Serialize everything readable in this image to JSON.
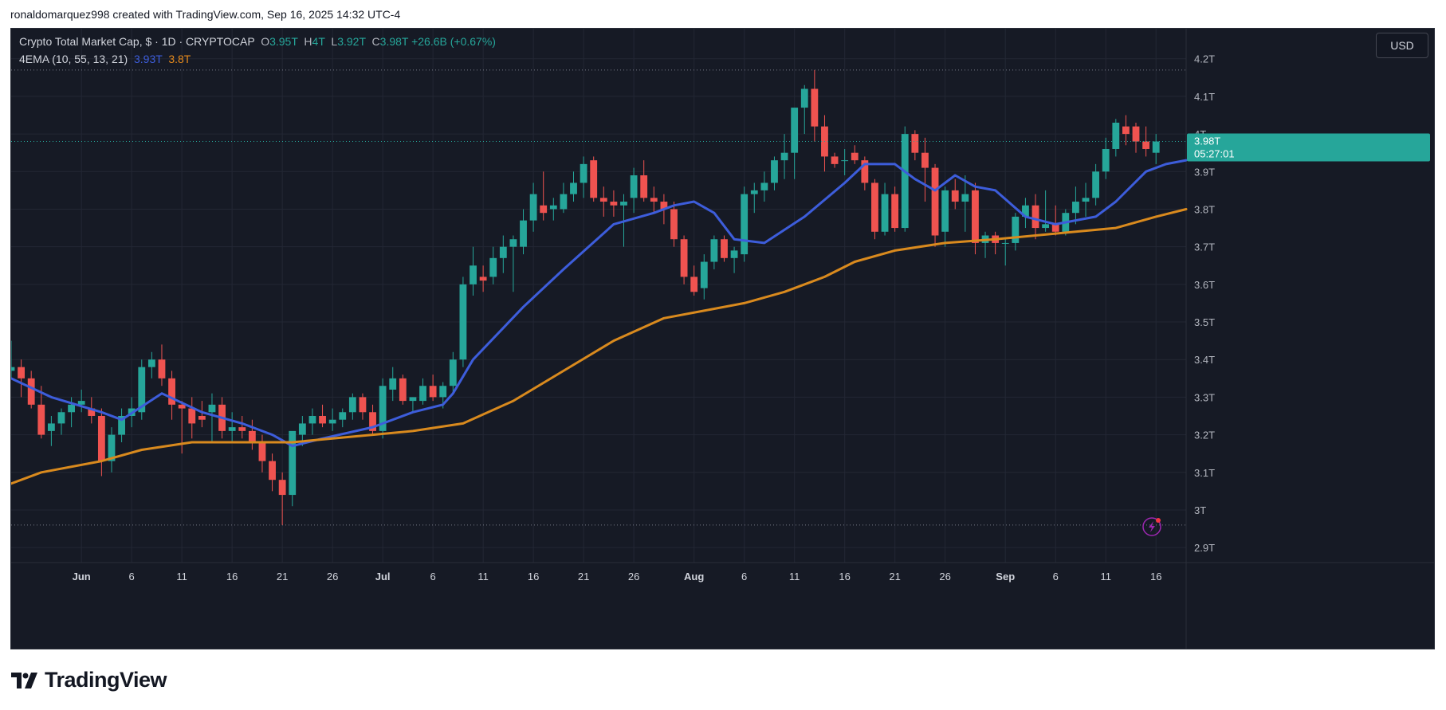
{
  "caption": "ronaldomarquez998 created with TradingView.com, Sep 16, 2025 14:32 UTC-4",
  "legend": {
    "title": "Crypto Total Market Cap, $ · 1D · CRYPTOCAP",
    "o_label": "O",
    "o_value": "3.95T",
    "h_label": "H",
    "h_value": "4T",
    "l_label": "L",
    "l_value": "3.92T",
    "c_label": "C",
    "c_value": "3.98T",
    "change": "+26.6B (+0.67%)",
    "indicator_name": "4EMA (10, 55, 13, 21)",
    "ema_fast_value": "3.93T",
    "ema_slow_value": "3.8T"
  },
  "currency_button": "USD",
  "price_label": {
    "price": "3.98T",
    "countdown": "05:27:01"
  },
  "brand": "TradingView",
  "colors": {
    "up": "#26a69a",
    "down": "#ef5350",
    "ema_fast": "#3d5ddb",
    "ema_slow": "#d98a1e",
    "background": "#161a25",
    "grid": "#232734"
  },
  "icons": {
    "logo": "tradingview-logo-icon",
    "alert": "lightning-alert-icon"
  },
  "chart_data": {
    "type": "candlestick",
    "y_ticks": [
      "2.9T",
      "3T",
      "3.1T",
      "3.2T",
      "3.3T",
      "3.4T",
      "3.5T",
      "3.6T",
      "3.7T",
      "3.8T",
      "3.9T",
      "4T",
      "4.1T",
      "4.2T"
    ],
    "y_tick_values": [
      2.9,
      3.0,
      3.1,
      3.2,
      3.3,
      3.4,
      3.5,
      3.6,
      3.7,
      3.8,
      3.9,
      4.0,
      4.1,
      4.2
    ],
    "ylim": [
      2.86,
      4.28
    ],
    "x_ticks": [
      {
        "label": "Jun",
        "date": "2025-06-01",
        "bold": true
      },
      {
        "label": "6",
        "date": "2025-06-06"
      },
      {
        "label": "11",
        "date": "2025-06-11"
      },
      {
        "label": "16",
        "date": "2025-06-16"
      },
      {
        "label": "21",
        "date": "2025-06-21"
      },
      {
        "label": "26",
        "date": "2025-06-26"
      },
      {
        "label": "Jul",
        "date": "2025-07-01",
        "bold": true
      },
      {
        "label": "6",
        "date": "2025-07-06"
      },
      {
        "label": "11",
        "date": "2025-07-11"
      },
      {
        "label": "16",
        "date": "2025-07-16"
      },
      {
        "label": "21",
        "date": "2025-07-21"
      },
      {
        "label": "26",
        "date": "2025-07-26"
      },
      {
        "label": "Aug",
        "date": "2025-08-01",
        "bold": true
      },
      {
        "label": "6",
        "date": "2025-08-06"
      },
      {
        "label": "11",
        "date": "2025-08-11"
      },
      {
        "label": "16",
        "date": "2025-08-16"
      },
      {
        "label": "21",
        "date": "2025-08-21"
      },
      {
        "label": "26",
        "date": "2025-08-26"
      },
      {
        "label": "Sep",
        "date": "2025-09-01",
        "bold": true
      },
      {
        "label": "6",
        "date": "2025-09-06"
      },
      {
        "label": "11",
        "date": "2025-09-11"
      },
      {
        "label": "16",
        "date": "2025-09-16"
      }
    ],
    "first_date": "2025-05-25",
    "last_date": "2025-09-16",
    "visible_range": [
      "2025-05-25",
      "2025-09-19"
    ],
    "ohlc": [
      [
        3.37,
        3.45,
        3.35,
        3.38
      ],
      [
        3.38,
        3.4,
        3.3,
        3.35
      ],
      [
        3.35,
        3.37,
        3.27,
        3.28
      ],
      [
        3.28,
        3.33,
        3.19,
        3.2
      ],
      [
        3.21,
        3.25,
        3.17,
        3.23
      ],
      [
        3.23,
        3.27,
        3.2,
        3.26
      ],
      [
        3.26,
        3.3,
        3.22,
        3.28
      ],
      [
        3.28,
        3.32,
        3.26,
        3.29
      ],
      [
        3.27,
        3.3,
        3.23,
        3.25
      ],
      [
        3.25,
        3.27,
        3.09,
        3.13
      ],
      [
        3.13,
        3.22,
        3.1,
        3.2
      ],
      [
        3.2,
        3.27,
        3.18,
        3.25
      ],
      [
        3.25,
        3.3,
        3.22,
        3.27
      ],
      [
        3.26,
        3.4,
        3.24,
        3.38
      ],
      [
        3.38,
        3.42,
        3.35,
        3.4
      ],
      [
        3.4,
        3.44,
        3.33,
        3.35
      ],
      [
        3.35,
        3.37,
        3.24,
        3.28
      ],
      [
        3.28,
        3.29,
        3.15,
        3.27
      ],
      [
        3.27,
        3.3,
        3.19,
        3.23
      ],
      [
        3.25,
        3.29,
        3.22,
        3.24
      ],
      [
        3.26,
        3.31,
        3.18,
        3.28
      ],
      [
        3.28,
        3.3,
        3.19,
        3.21
      ],
      [
        3.21,
        3.26,
        3.18,
        3.22
      ],
      [
        3.22,
        3.25,
        3.19,
        3.21
      ],
      [
        3.21,
        3.24,
        3.16,
        3.18
      ],
      [
        3.18,
        3.2,
        3.1,
        3.13
      ],
      [
        3.13,
        3.15,
        3.05,
        3.08
      ],
      [
        3.08,
        3.1,
        2.96,
        3.04
      ],
      [
        3.04,
        3.2,
        3.01,
        3.21
      ],
      [
        3.2,
        3.25,
        3.17,
        3.23
      ],
      [
        3.23,
        3.27,
        3.2,
        3.25
      ],
      [
        3.25,
        3.28,
        3.22,
        3.23
      ],
      [
        3.23,
        3.27,
        3.21,
        3.24
      ],
      [
        3.24,
        3.27,
        3.22,
        3.26
      ],
      [
        3.26,
        3.31,
        3.24,
        3.3
      ],
      [
        3.3,
        3.31,
        3.24,
        3.26
      ],
      [
        3.26,
        3.28,
        3.2,
        3.21
      ],
      [
        3.21,
        3.35,
        3.19,
        3.33
      ],
      [
        3.32,
        3.38,
        3.29,
        3.35
      ],
      [
        3.35,
        3.36,
        3.28,
        3.29
      ],
      [
        3.29,
        3.3,
        3.26,
        3.3
      ],
      [
        3.29,
        3.35,
        3.28,
        3.33
      ],
      [
        3.33,
        3.36,
        3.29,
        3.3
      ],
      [
        3.3,
        3.34,
        3.27,
        3.33
      ],
      [
        3.33,
        3.42,
        3.31,
        3.4
      ],
      [
        3.4,
        3.62,
        3.38,
        3.6
      ],
      [
        3.6,
        3.7,
        3.57,
        3.65
      ],
      [
        3.62,
        3.65,
        3.58,
        3.61
      ],
      [
        3.62,
        3.7,
        3.6,
        3.67
      ],
      [
        3.67,
        3.73,
        3.63,
        3.7
      ],
      [
        3.7,
        3.73,
        3.58,
        3.72
      ],
      [
        3.7,
        3.8,
        3.68,
        3.77
      ],
      [
        3.77,
        3.87,
        3.74,
        3.84
      ],
      [
        3.81,
        3.9,
        3.77,
        3.79
      ],
      [
        3.8,
        3.83,
        3.77,
        3.81
      ],
      [
        3.8,
        3.87,
        3.79,
        3.84
      ],
      [
        3.84,
        3.9,
        3.82,
        3.87
      ],
      [
        3.87,
        3.94,
        3.83,
        3.92
      ],
      [
        3.93,
        3.94,
        3.82,
        3.83
      ],
      [
        3.83,
        3.86,
        3.78,
        3.82
      ],
      [
        3.82,
        3.85,
        3.78,
        3.81
      ],
      [
        3.81,
        3.84,
        3.7,
        3.82
      ],
      [
        3.83,
        3.91,
        3.79,
        3.89
      ],
      [
        3.89,
        3.93,
        3.82,
        3.83
      ],
      [
        3.83,
        3.86,
        3.79,
        3.82
      ],
      [
        3.82,
        3.84,
        3.76,
        3.8
      ],
      [
        3.8,
        3.82,
        3.7,
        3.72
      ],
      [
        3.72,
        3.73,
        3.6,
        3.62
      ],
      [
        3.62,
        3.65,
        3.57,
        3.58
      ],
      [
        3.59,
        3.68,
        3.56,
        3.66
      ],
      [
        3.66,
        3.73,
        3.64,
        3.72
      ],
      [
        3.72,
        3.73,
        3.66,
        3.67
      ],
      [
        3.67,
        3.7,
        3.63,
        3.69
      ],
      [
        3.68,
        3.86,
        3.66,
        3.84
      ],
      [
        3.84,
        3.87,
        3.79,
        3.85
      ],
      [
        3.85,
        3.9,
        3.82,
        3.87
      ],
      [
        3.87,
        3.94,
        3.85,
        3.93
      ],
      [
        3.93,
        4.0,
        3.88,
        3.95
      ],
      [
        3.95,
        4.06,
        3.88,
        4.07
      ],
      [
        4.07,
        4.13,
        4.0,
        4.12
      ],
      [
        4.12,
        4.17,
        3.98,
        4.02
      ],
      [
        4.02,
        4.05,
        3.9,
        3.94
      ],
      [
        3.94,
        3.95,
        3.91,
        3.92
      ],
      [
        3.93,
        3.96,
        3.89,
        3.93
      ],
      [
        3.95,
        3.97,
        3.92,
        3.93
      ],
      [
        3.93,
        3.94,
        3.85,
        3.87
      ],
      [
        3.87,
        3.88,
        3.72,
        3.74
      ],
      [
        3.74,
        3.87,
        3.73,
        3.84
      ],
      [
        3.84,
        3.86,
        3.74,
        3.75
      ],
      [
        3.75,
        4.02,
        3.74,
        4.0
      ],
      [
        4.0,
        4.01,
        3.93,
        3.95
      ],
      [
        3.95,
        3.99,
        3.82,
        3.91
      ],
      [
        3.91,
        3.92,
        3.7,
        3.73
      ],
      [
        3.74,
        3.86,
        3.7,
        3.85
      ],
      [
        3.85,
        3.88,
        3.8,
        3.82
      ],
      [
        3.82,
        3.89,
        3.74,
        3.84
      ],
      [
        3.85,
        3.87,
        3.68,
        3.71
      ],
      [
        3.71,
        3.74,
        3.67,
        3.73
      ],
      [
        3.73,
        3.74,
        3.68,
        3.71
      ],
      [
        3.71,
        3.72,
        3.65,
        3.71
      ],
      [
        3.71,
        3.79,
        3.69,
        3.78
      ],
      [
        3.78,
        3.83,
        3.75,
        3.81
      ],
      [
        3.81,
        3.84,
        3.72,
        3.75
      ],
      [
        3.75,
        3.85,
        3.74,
        3.76
      ],
      [
        3.76,
        3.81,
        3.73,
        3.74
      ],
      [
        3.74,
        3.8,
        3.73,
        3.79
      ],
      [
        3.79,
        3.86,
        3.76,
        3.82
      ],
      [
        3.82,
        3.87,
        3.78,
        3.83
      ],
      [
        3.83,
        3.92,
        3.81,
        3.9
      ],
      [
        3.9,
        3.99,
        3.88,
        3.96
      ],
      [
        3.96,
        4.04,
        3.94,
        4.03
      ],
      [
        4.02,
        4.05,
        3.97,
        4.0
      ],
      [
        4.02,
        4.03,
        3.95,
        3.98
      ],
      [
        3.98,
        4.02,
        3.94,
        3.96
      ],
      [
        3.95,
        4.0,
        3.92,
        3.98
      ]
    ],
    "series": [
      {
        "name": "EMA 10",
        "points": [
          [
            0,
            3.35
          ],
          [
            4,
            3.3
          ],
          [
            9,
            3.26
          ],
          [
            11,
            3.24
          ],
          [
            15,
            3.31
          ],
          [
            19,
            3.26
          ],
          [
            23,
            3.23
          ],
          [
            26,
            3.2
          ],
          [
            28,
            3.17
          ],
          [
            31,
            3.19
          ],
          [
            36,
            3.22
          ],
          [
            40,
            3.26
          ],
          [
            43,
            3.28
          ],
          [
            44,
            3.31
          ],
          [
            46,
            3.4
          ],
          [
            51,
            3.54
          ],
          [
            55,
            3.64
          ],
          [
            60,
            3.76
          ],
          [
            64,
            3.79
          ],
          [
            66,
            3.81
          ],
          [
            68,
            3.82
          ],
          [
            70,
            3.79
          ],
          [
            72,
            3.72
          ],
          [
            75,
            3.71
          ],
          [
            79,
            3.78
          ],
          [
            83,
            3.87
          ],
          [
            85,
            3.92
          ],
          [
            88,
            3.92
          ],
          [
            90,
            3.88
          ],
          [
            92,
            3.85
          ],
          [
            94,
            3.89
          ],
          [
            96,
            3.86
          ],
          [
            98,
            3.85
          ],
          [
            101,
            3.78
          ],
          [
            104,
            3.76
          ],
          [
            106,
            3.77
          ],
          [
            108,
            3.78
          ],
          [
            110,
            3.82
          ],
          [
            113,
            3.9
          ],
          [
            115,
            3.92
          ],
          [
            117,
            3.93
          ]
        ]
      },
      {
        "name": "EMA 55",
        "points": [
          [
            0,
            3.07
          ],
          [
            3,
            3.1
          ],
          [
            9,
            3.13
          ],
          [
            13,
            3.16
          ],
          [
            18,
            3.18
          ],
          [
            24,
            3.18
          ],
          [
            28,
            3.18
          ],
          [
            32,
            3.19
          ],
          [
            36,
            3.2
          ],
          [
            40,
            3.21
          ],
          [
            45,
            3.23
          ],
          [
            50,
            3.29
          ],
          [
            55,
            3.37
          ],
          [
            60,
            3.45
          ],
          [
            65,
            3.51
          ],
          [
            69,
            3.53
          ],
          [
            73,
            3.55
          ],
          [
            77,
            3.58
          ],
          [
            81,
            3.62
          ],
          [
            84,
            3.66
          ],
          [
            88,
            3.69
          ],
          [
            93,
            3.71
          ],
          [
            98,
            3.72
          ],
          [
            102,
            3.73
          ],
          [
            106,
            3.74
          ],
          [
            110,
            3.75
          ],
          [
            114,
            3.78
          ],
          [
            117,
            3.8
          ]
        ]
      }
    ]
  }
}
